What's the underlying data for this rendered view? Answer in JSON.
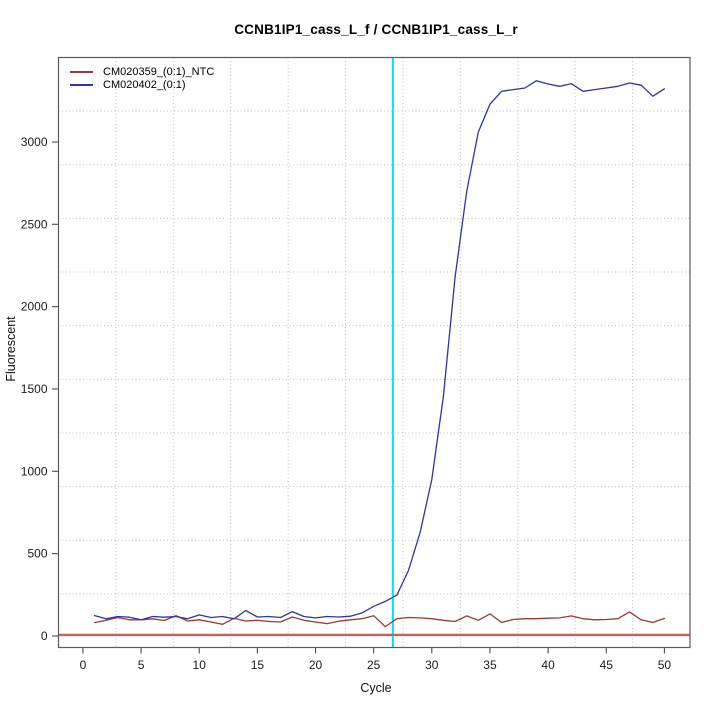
{
  "chart": {
    "title": "CCNB1IP1_cass_L_f / CCNB1IP1_cass_L_r",
    "xlabel": "Cycle",
    "ylabel": "Fluorescent"
  },
  "chart_data": {
    "type": "line",
    "title": "CCNB1IP1_cass_L_f / CCNB1IP1_cass_L_r",
    "xlabel": "Cycle",
    "ylabel": "Fluorescent",
    "x": [
      1,
      2,
      3,
      4,
      5,
      6,
      7,
      8,
      9,
      10,
      11,
      12,
      13,
      14,
      15,
      16,
      17,
      18,
      19,
      20,
      21,
      22,
      23,
      24,
      25,
      26,
      27,
      28,
      29,
      30,
      31,
      32,
      33,
      34,
      35,
      36,
      37,
      38,
      39,
      40,
      41,
      42,
      43,
      44,
      45,
      46,
      47,
      48,
      49,
      50
    ],
    "series": [
      {
        "name": "CM020359_(0:1)_NTC",
        "color": "#993939",
        "values": [
          81,
          96,
          112,
          98,
          98,
          104,
          94,
          124,
          91,
          98,
          85,
          71,
          108,
          91,
          95,
          88,
          85,
          115,
          95,
          85,
          75,
          90,
          98,
          105,
          123,
          57,
          105,
          112,
          110,
          105,
          95,
          88,
          122,
          95,
          134,
          82,
          100,
          105,
          105,
          108,
          110,
          122,
          105,
          98,
          100,
          105,
          146,
          98,
          82,
          107
        ]
      },
      {
        "name": "CM020402_(0:1)",
        "color": "#3333a3",
        "values": [
          124,
          104,
          118,
          114,
          98,
          118,
          114,
          118,
          104,
          128,
          112,
          118,
          104,
          155,
          115,
          118,
          112,
          148,
          118,
          110,
          118,
          115,
          120,
          140,
          180,
          210,
          248,
          400,
          630,
          950,
          1455,
          2180,
          2700,
          3060,
          3230,
          3308,
          3318,
          3328,
          3372,
          3352,
          3338,
          3354,
          3308,
          3318,
          3328,
          3338,
          3358,
          3345,
          3278,
          3323
        ]
      }
    ],
    "x_ticks": [
      0,
      5,
      10,
      15,
      20,
      25,
      30,
      35,
      40,
      45,
      50
    ],
    "y_ticks": [
      0,
      500,
      1000,
      1500,
      2000,
      2500,
      3000
    ],
    "xlim": [
      -2.1,
      52.2
    ],
    "ylim": [
      -70,
      3513
    ],
    "grid": {
      "divisions": 11,
      "color": "#bfbfbf",
      "style": "dotted"
    },
    "ct_line": {
      "x": 26.65,
      "color": "#00e6e6"
    },
    "zero_line": {
      "y": 0,
      "color": "#c46262"
    },
    "legend_position": "top-left",
    "axis_color": "#5c5c5c",
    "tick_text_color": "#1a1a1a"
  }
}
